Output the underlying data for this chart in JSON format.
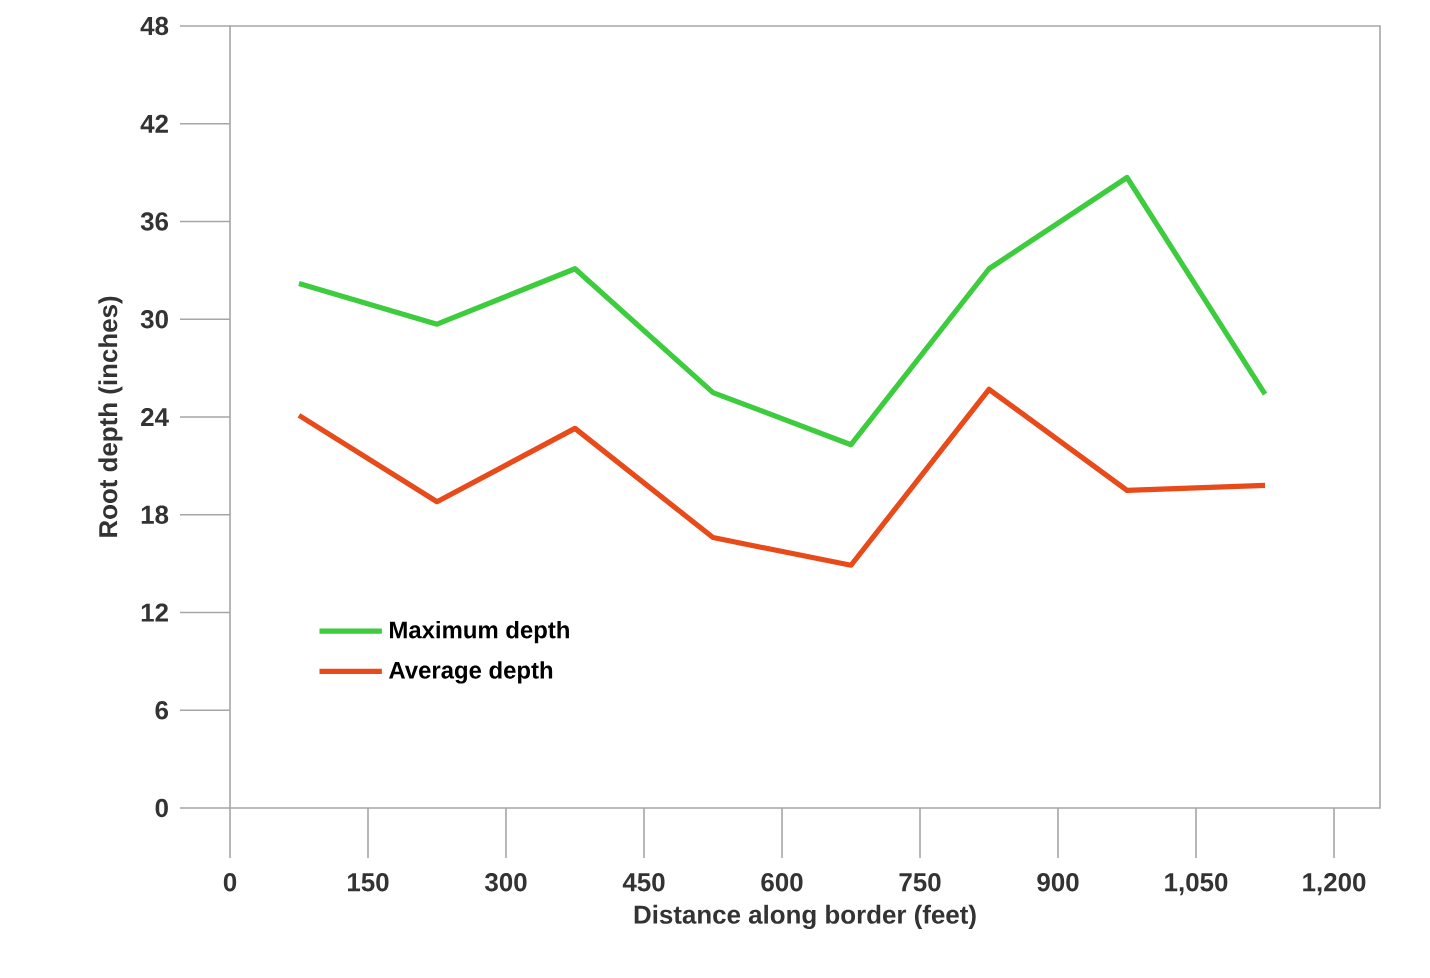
{
  "chart_data": {
    "type": "line",
    "xlabel": "Distance along border (feet)",
    "ylabel": "Root depth (inches)",
    "x": [
      75,
      225,
      375,
      525,
      675,
      825,
      975,
      1125
    ],
    "series": [
      {
        "name": "Maximum depth",
        "color": "#3dcc3d",
        "values": [
          32.2,
          29.7,
          33.1,
          25.5,
          22.3,
          33.1,
          38.7,
          25.4
        ]
      },
      {
        "name": "Average depth",
        "color": "#e84a1a",
        "values": [
          24.1,
          18.8,
          23.3,
          16.6,
          14.9,
          25.7,
          19.5,
          19.8
        ]
      }
    ],
    "xlim": [
      0,
      1250
    ],
    "xticks": [
      0,
      150,
      300,
      450,
      600,
      750,
      900,
      {
        "value": 1050,
        "label": "1,050"
      },
      {
        "value": 1200,
        "label": "1,200"
      }
    ],
    "ylim": [
      0,
      48
    ],
    "yticks": [
      0,
      6,
      12,
      18,
      24,
      30,
      36,
      42,
      48
    ],
    "legend": "bottom left",
    "grid": false,
    "marker": "none",
    "line_style": "solid"
  }
}
